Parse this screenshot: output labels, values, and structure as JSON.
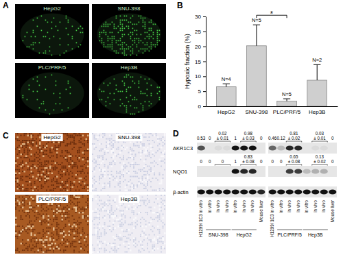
{
  "chart_data": {
    "type": "bar",
    "ylabel": "Hypoxic fraction (%)",
    "categories": [
      "HepG2",
      "SNU-398",
      "PLC/PRF/5",
      "Hep3B"
    ],
    "values": [
      6.5,
      20.2,
      1.7,
      8.7
    ],
    "errors": [
      1.0,
      7.0,
      0.8,
      5.2
    ],
    "sample_sizes": [
      "N=4",
      "N=5",
      "N=5",
      "N=2"
    ],
    "significance": {
      "label": "*",
      "between": [
        "SNU-398",
        "PLC/PRF/5"
      ]
    },
    "color": "#cfcfcf",
    "ylim": [
      0,
      30
    ],
    "yticks": [
      0,
      5,
      10,
      15,
      20,
      25,
      30
    ]
  },
  "figure": {
    "panel_labels": [
      "A",
      "B",
      "C",
      "D"
    ],
    "panel_a": {
      "images": [
        "HepG2",
        "SNU-398",
        "PLC/PRF/5",
        "Hep3B"
      ]
    },
    "panel_c": {
      "images": [
        "HepG2",
        "SNU-398",
        "PLC/PRF/5",
        "Hep3B"
      ]
    },
    "panel_d": {
      "row_labels": [
        "AKR1C3",
        "NQO1",
        "β-actin"
      ],
      "blots": [
        {
          "lanes": [
            "H1299/ 1C3 in vitro",
            "in vitro",
            "in vivo",
            "in vivo",
            "in vitro",
            "in vivo",
            "in vivo",
            "Mouse liver"
          ],
          "groups": [
            {
              "name": "SNU-398",
              "span": [
                1,
                3
              ]
            },
            {
              "name": "HepG2",
              "span": [
                4,
                6
              ]
            }
          ],
          "rows": [
            {
              "bands": [
                0.7,
                0,
                0.05,
                0.05,
                1,
                1,
                1,
                0
              ],
              "annotations": [
                {
                  "lanes": [
                    0
                  ],
                  "text": [
                    "0.53"
                  ]
                },
                {
                  "lanes": [
                    1
                  ],
                  "text": [
                    "0"
                  ]
                },
                {
                  "lanes": [
                    2,
                    3
                  ],
                  "text": [
                    "0.02",
                    "± 0.01"
                  ]
                },
                {
                  "lanes": [
                    4
                  ],
                  "text": [
                    "1"
                  ]
                },
                {
                  "lanes": [
                    5,
                    6
                  ],
                  "text": [
                    "0.98",
                    "± 0.03"
                  ]
                },
                {
                  "lanes": [
                    7
                  ],
                  "text": [
                    "0"
                  ]
                }
              ]
            },
            {
              "bands": [
                0,
                0,
                0,
                0,
                1,
                0.9,
                0.9,
                0
              ],
              "annotations": [
                {
                  "lanes": [
                    0
                  ],
                  "text": [
                    "0"
                  ]
                },
                {
                  "lanes": [
                    1
                  ],
                  "text": [
                    "0"
                  ]
                },
                {
                  "lanes": [
                    2,
                    3
                  ],
                  "text": [
                    "0"
                  ]
                },
                {
                  "lanes": [
                    4
                  ],
                  "text": [
                    "1"
                  ]
                },
                {
                  "lanes": [
                    5,
                    6
                  ],
                  "text": [
                    "0.83",
                    "± 0.08"
                  ]
                },
                {
                  "lanes": [
                    7
                  ],
                  "text": [
                    "0"
                  ]
                }
              ]
            },
            {
              "bands": [
                1,
                1,
                1,
                1,
                1,
                1,
                1,
                0.9
              ],
              "annotations": []
            }
          ]
        },
        {
          "lanes": [
            "H1299/ 1C3 in vitro",
            "in vitro",
            "in vivo",
            "in vivo",
            "in vitro",
            "in vivo",
            "in vivo",
            "Mouse liver"
          ],
          "groups": [
            {
              "name": "PLC/PRF/5",
              "span": [
                1,
                3
              ]
            },
            {
              "name": "Hep3B",
              "span": [
                4,
                6
              ]
            }
          ],
          "rows": [
            {
              "bands": [
                0.6,
                0.2,
                0.9,
                0.9,
                0,
                0.05,
                0.05,
                0
              ],
              "annotations": [
                {
                  "lanes": [
                    0
                  ],
                  "text": [
                    "0.46"
                  ]
                },
                {
                  "lanes": [
                    1
                  ],
                  "text": [
                    "0.12"
                  ]
                },
                {
                  "lanes": [
                    2,
                    3
                  ],
                  "text": [
                    "0.81",
                    "± 0.02"
                  ]
                },
                {
                  "lanes": [
                    5,
                    6
                  ],
                  "text": [
                    "0.03",
                    "± 0.01"
                  ]
                },
                {
                  "lanes": [
                    7
                  ],
                  "text": [
                    "0"
                  ]
                }
              ]
            },
            {
              "bands": [
                0,
                0,
                0.8,
                0.8,
                0.2,
                0.25,
                0.25,
                0
              ],
              "annotations": [
                {
                  "lanes": [
                    0
                  ],
                  "text": [
                    "0"
                  ]
                },
                {
                  "lanes": [
                    1
                  ],
                  "text": [
                    "0"
                  ]
                },
                {
                  "lanes": [
                    2,
                    3
                  ],
                  "text": [
                    "0.65",
                    "± 0.08"
                  ]
                },
                {
                  "lanes": [
                    5,
                    6
                  ],
                  "text": [
                    "0.13",
                    "± 0.02"
                  ]
                },
                {
                  "lanes": [
                    7
                  ],
                  "text": [
                    "0"
                  ]
                }
              ]
            },
            {
              "bands": [
                1,
                1,
                1,
                1,
                1,
                1,
                1,
                1
              ],
              "annotations": []
            }
          ]
        }
      ]
    }
  }
}
